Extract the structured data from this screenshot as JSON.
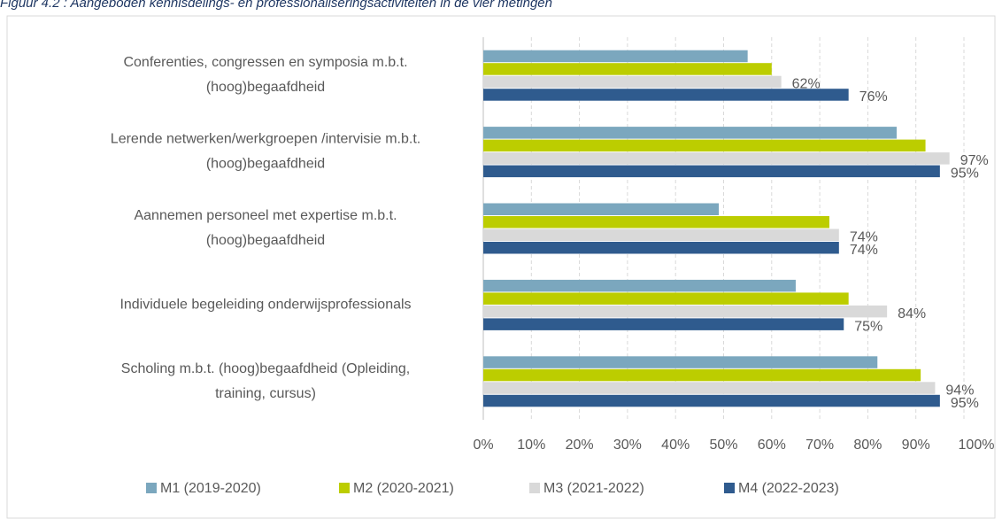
{
  "chart_data": {
    "type": "hbar",
    "title": "Figuur 4.2 : Aangeboden kennisdelings- en professionaliseringsactiviteiten in de vier metingen",
    "categories": [
      "Conferenties, congressen en symposia m.b.t.\n(hoog)begaafdheid",
      "Lerende netwerken/werkgroepen /intervisie m.b.t.\n(hoog)begaafdheid",
      "Aannemen personeel met expertise m.b.t.\n(hoog)begaafdheid",
      "Individuele begeleiding onderwijsprofessionals",
      "Scholing m.b.t. (hoog)begaafdheid (Opleiding,\ntraining, cursus)"
    ],
    "series": [
      {
        "name": "M1 (2019-2020)",
        "color": "#7ba7be",
        "values": [
          55,
          86,
          49,
          65,
          82
        ]
      },
      {
        "name": "M2 (2020-2021)",
        "color": "#bccd00",
        "values": [
          60,
          92,
          72,
          76,
          91
        ]
      },
      {
        "name": "M3 (2021-2022)",
        "color": "#d9d9d9",
        "values": [
          62,
          97,
          74,
          84,
          94
        ],
        "value_labels": [
          "62%",
          "97%",
          "74%",
          "84%",
          "94%"
        ]
      },
      {
        "name": "M4 (2022-2023)",
        "color": "#2f5b8e",
        "values": [
          76,
          95,
          74,
          75,
          95
        ],
        "value_labels": [
          "76%",
          "95%",
          "74%",
          "75%",
          "95%"
        ]
      }
    ],
    "xlim": [
      0,
      100
    ],
    "xticks": [
      {
        "value": 0,
        "label": "0%"
      },
      {
        "value": 10,
        "label": "10%"
      },
      {
        "value": 20,
        "label": "20%"
      },
      {
        "value": 30,
        "label": "30%"
      },
      {
        "value": 40,
        "label": "40%"
      },
      {
        "value": 50,
        "label": "50%"
      },
      {
        "value": 60,
        "label": "60%"
      },
      {
        "value": 70,
        "label": "70%"
      },
      {
        "value": 80,
        "label": "80%"
      },
      {
        "value": 90,
        "label": "90%"
      },
      {
        "value": 100,
        "label": "100%"
      }
    ],
    "grid": true,
    "legend": "bottom"
  }
}
